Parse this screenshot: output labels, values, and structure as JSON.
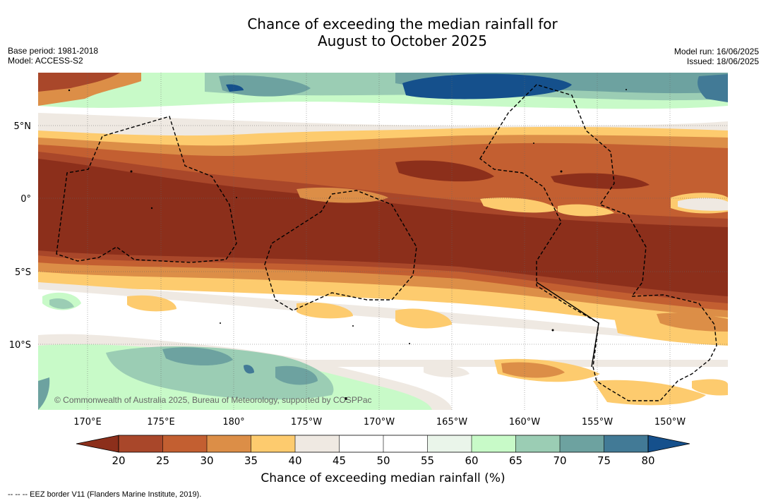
{
  "title_line1": "Chance of exceeding the median rainfall for",
  "title_line2": "August to October 2025",
  "base_period": "Base period: 1981-2018",
  "model": "Model: ACCESS-S2",
  "model_run": "Model run: 16/06/2025",
  "issued": "Issued: 18/06/2025",
  "copyright": "© Commonwealth of Australia 2025, Bureau of Meteorology, supported by COSPPac",
  "lat_labels": [
    "5°N",
    "0°",
    "5°S",
    "10°S"
  ],
  "lon_labels": [
    "170°E",
    "175°E",
    "180°",
    "175°W",
    "170°W",
    "165°W",
    "160°W",
    "155°W",
    "150°W"
  ],
  "colorbar": {
    "ticks": [
      "20",
      "25",
      "30",
      "35",
      "40",
      "45",
      "50",
      "55",
      "60",
      "65",
      "70",
      "75",
      "80"
    ],
    "title": "Chance of exceeding median rainfall (%)",
    "colors": {
      "below20": "#8c2f1b",
      "b20_25": "#a9472a",
      "b25_30": "#c35f31",
      "b30_35": "#dc8e47",
      "b35_40": "#fdcb6e",
      "b40_45": "#efe9e2",
      "b45_50": "#ffffff",
      "b50_55": "#ffffff",
      "b55_60": "#eaf5ea",
      "b60_65": "#c8fac8",
      "b65_70": "#9bcdb4",
      "b70_75": "#6da2a0",
      "b75_80": "#427a96",
      "above80": "#15508c"
    }
  },
  "footnote": "-- -- -- EEZ border V11 (Flanders Marine Institute, 2019)."
}
